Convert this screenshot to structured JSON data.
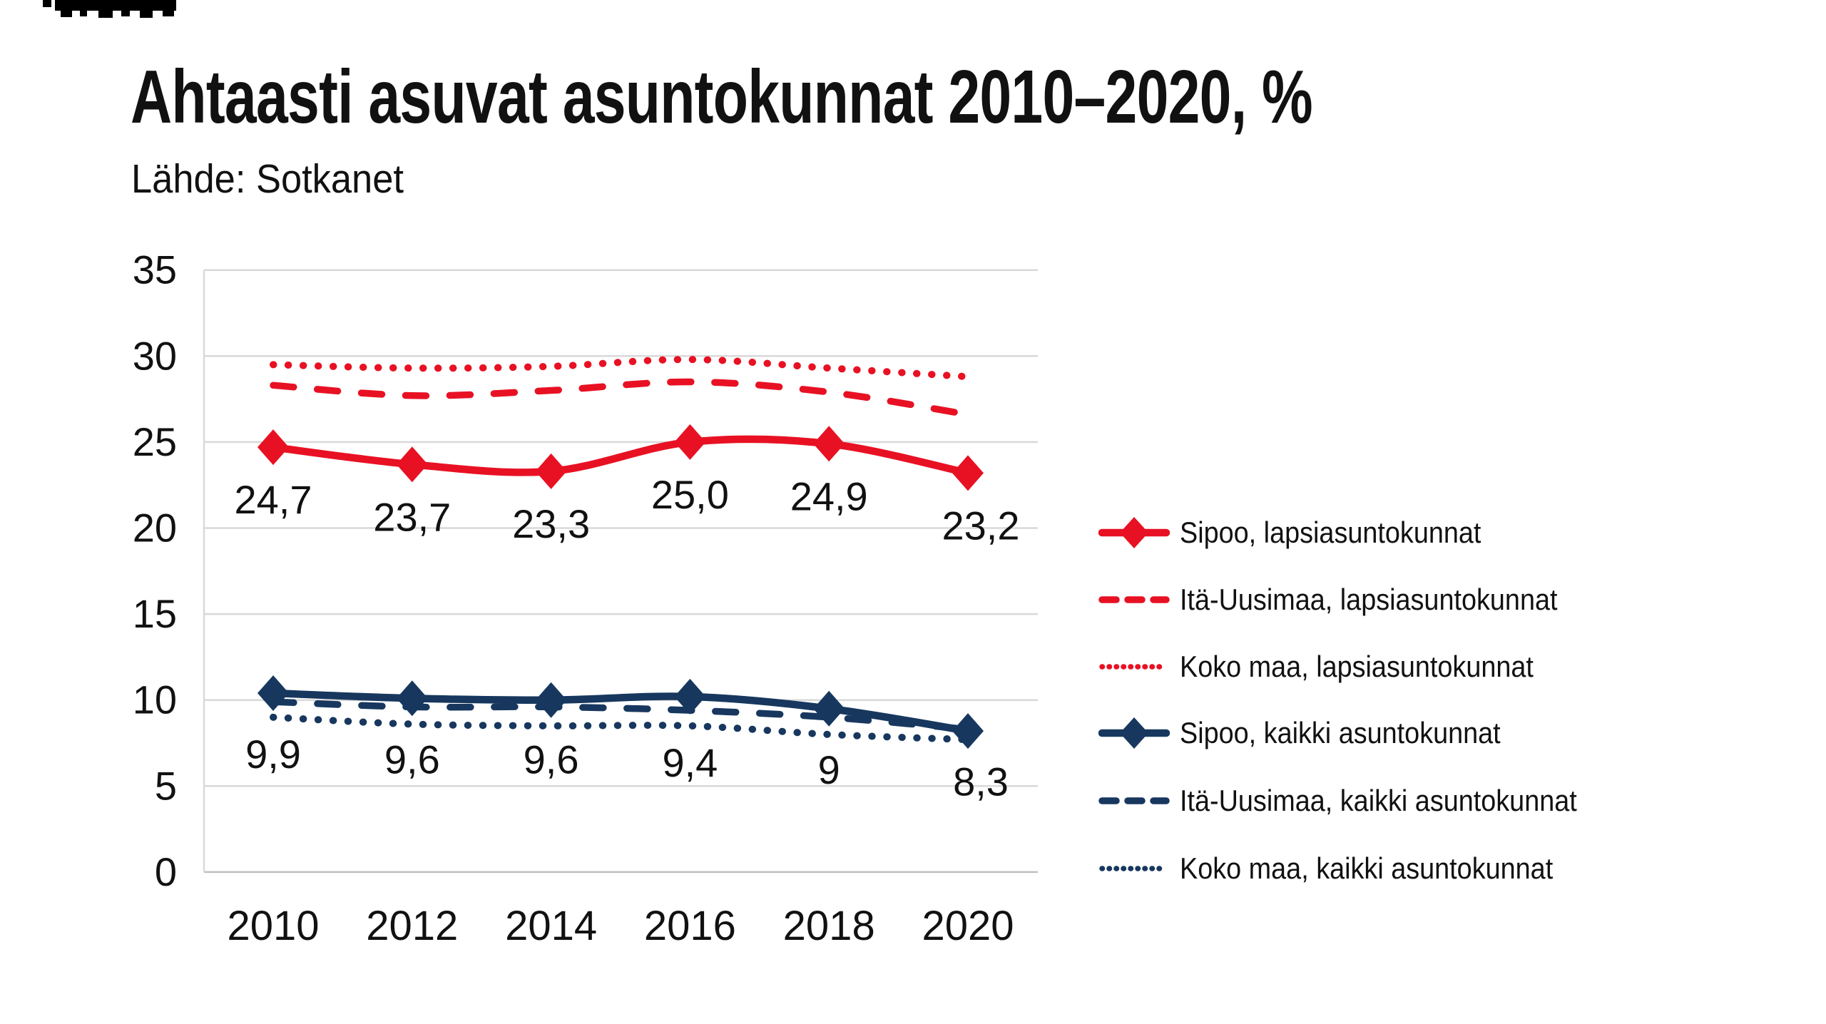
{
  "page": {
    "background": "#ffffff"
  },
  "artifact": {
    "color": "#000000"
  },
  "header": {
    "title": "Ahtaasti asuvat asuntokunnat 2010–2020, %",
    "source": "Lähde: Sotkanet"
  },
  "chart_data": {
    "type": "line",
    "title": "Ahtaasti asuvat asuntokunnat 2010–2020, %",
    "subtitle": "Lähde: Sotkanet",
    "categories": [
      "2010",
      "2012",
      "2014",
      "2016",
      "2018",
      "2020"
    ],
    "y_tick_labels": [
      "0",
      "5",
      "10",
      "15",
      "20",
      "25",
      "30",
      "35"
    ],
    "ylim": [
      0,
      35
    ],
    "grid": "horizontal",
    "legend_position": "right",
    "colors": {
      "red": "#E81123",
      "navy": "#17375E",
      "gridline": "#D9D9D9",
      "axis_line": "#BFBFBF",
      "text": "#111111"
    },
    "series": [
      {
        "name": "Sipoo, lapsiasuntokunnat",
        "color": "#E81123",
        "style": "solid",
        "marker": "diamond",
        "values": [
          24.7,
          23.7,
          23.3,
          25.0,
          24.9,
          23.2
        ],
        "labels": [
          "24,7",
          "23,7",
          "23,3",
          "25,0",
          "24,9",
          "23,2"
        ]
      },
      {
        "name": "Itä-Uusimaa, lapsiasuntokunnat",
        "color": "#E81123",
        "style": "dashed",
        "marker": "none",
        "values": [
          28.3,
          27.7,
          28.0,
          28.5,
          27.9,
          26.6
        ]
      },
      {
        "name": "Koko maa, lapsiasuntokunnat",
        "color": "#E81123",
        "style": "dotted",
        "marker": "none",
        "values": [
          29.5,
          29.3,
          29.4,
          29.8,
          29.3,
          28.8
        ]
      },
      {
        "name": "Sipoo, kaikki asuntokunnat",
        "color": "#17375E",
        "style": "solid",
        "marker": "diamond",
        "values": [
          10.4,
          10.1,
          10.0,
          10.2,
          9.5,
          8.2
        ]
      },
      {
        "name": "Itä-Uusimaa, kaikki asuntokunnat",
        "color": "#17375E",
        "style": "dashed",
        "marker": "none",
        "values": [
          9.9,
          9.6,
          9.6,
          9.4,
          9.0,
          8.3
        ],
        "labels": [
          "9,9",
          "9,6",
          "9,6",
          "9,4",
          "9",
          "8,3"
        ]
      },
      {
        "name": "Koko maa, kaikki asuntokunnat",
        "color": "#17375E",
        "style": "dotted",
        "marker": "none",
        "values": [
          9.0,
          8.6,
          8.5,
          8.5,
          8.0,
          7.7
        ]
      }
    ]
  }
}
